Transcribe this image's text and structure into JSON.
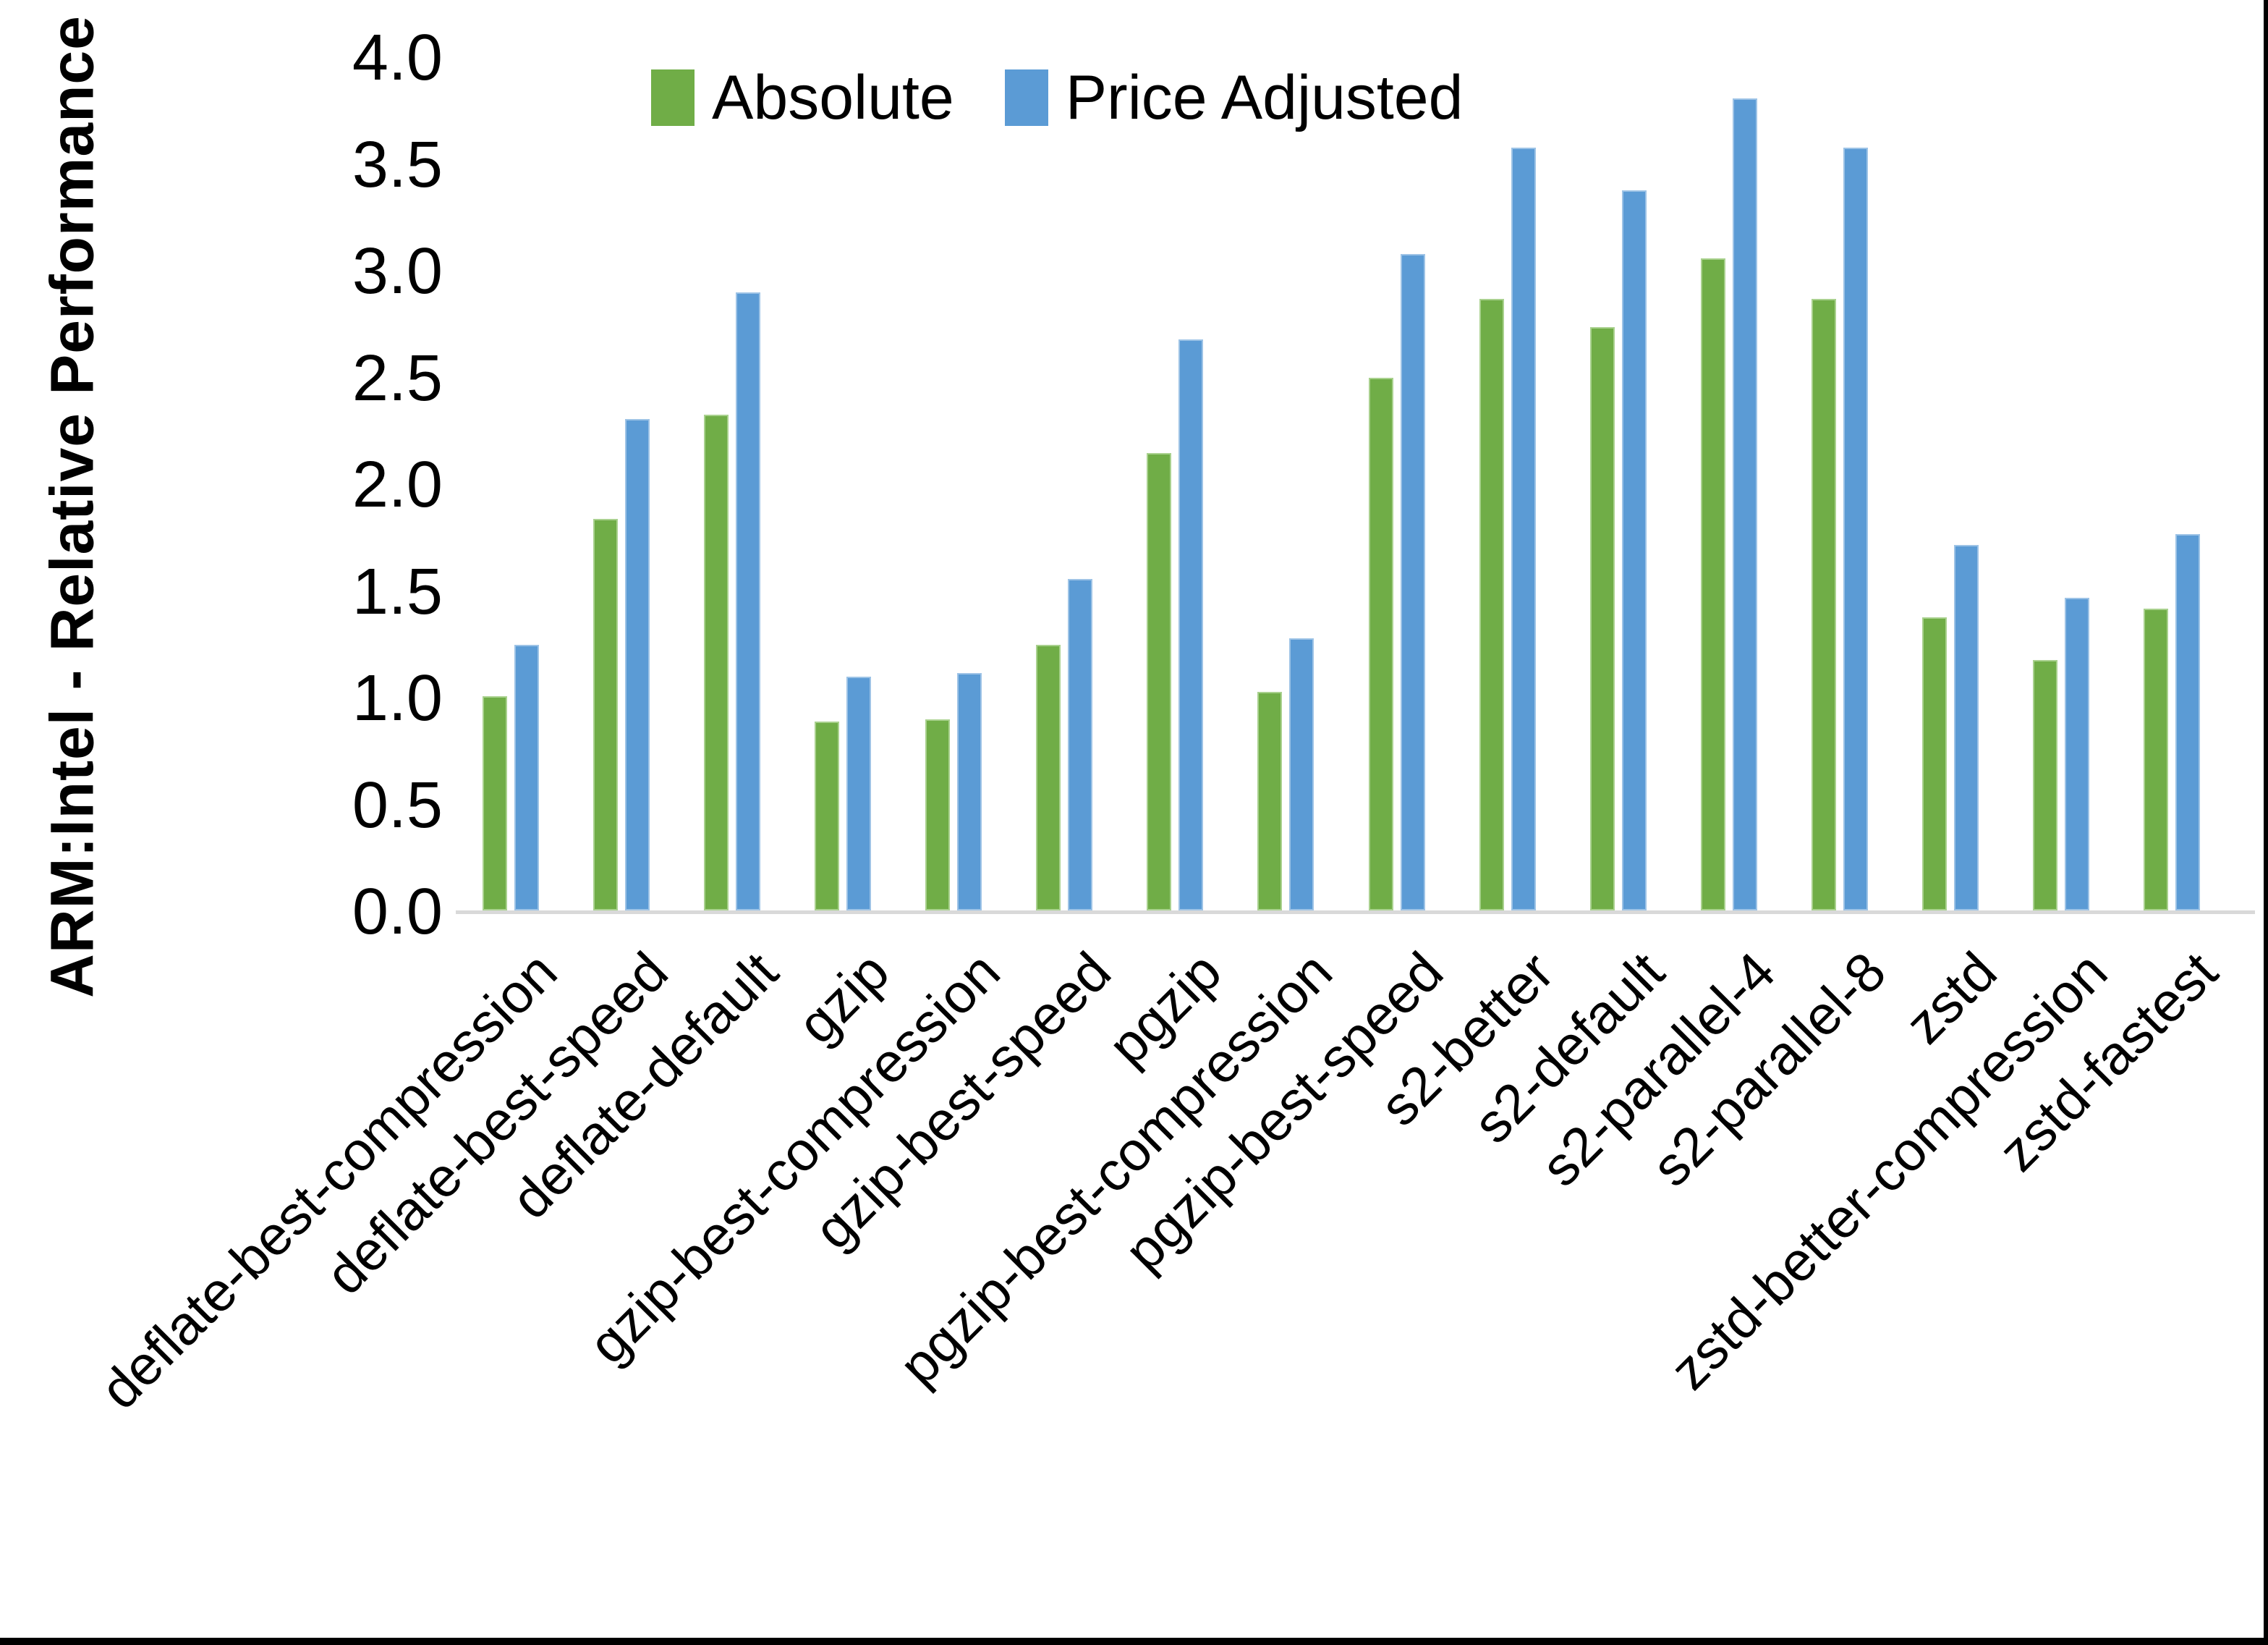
{
  "frame": {
    "background_color": "#ffffff",
    "border_right_color": "#000000",
    "border_bottom_color": "#000000"
  },
  "legend": {
    "position": "top-center",
    "items": [
      {
        "label": "Absolute",
        "color": "#70ad47"
      },
      {
        "label": "Price Adjusted",
        "color": "#5b9bd5"
      }
    ]
  },
  "chart_data": {
    "type": "bar",
    "title": "",
    "xlabel": "",
    "ylabel": "ARM:Intel - Relative Performance",
    "ylim": [
      0.0,
      4.0
    ],
    "ytick_step": 0.5,
    "yticks": [
      "0.0",
      "0.5",
      "1.0",
      "1.5",
      "2.0",
      "2.5",
      "3.0",
      "3.5",
      "4.0"
    ],
    "grid": false,
    "axis_color": "#d9d9d9",
    "text_color": "#000000",
    "legend_position": "top-center",
    "categories": [
      "deflate-best-compression",
      "deflate-best-speed",
      "deflate-default",
      "gzip",
      "gzip-best-compression",
      "gzip-best-speed",
      "pgzip",
      "pgzip-best-compression",
      "pgzip-best-speed",
      "s2-better",
      "s2-default",
      "s2-parallel-4",
      "s2-parallel-8",
      "zstd",
      "zstd-better-compression",
      "zstd-fastest"
    ],
    "series": [
      {
        "name": "Absolute",
        "color": "#70ad47",
        "edge_color": "#a9d18e",
        "values": [
          1.01,
          1.84,
          2.33,
          0.89,
          0.9,
          1.25,
          2.15,
          1.03,
          2.5,
          2.87,
          2.74,
          3.06,
          2.87,
          1.38,
          1.18,
          1.42
        ]
      },
      {
        "name": "Price Adjusted",
        "color": "#5b9bd5",
        "edge_color": "#9dc3e6",
        "values": [
          1.25,
          2.31,
          2.9,
          1.1,
          1.12,
          1.56,
          2.68,
          1.28,
          3.08,
          3.58,
          3.38,
          3.81,
          3.58,
          1.72,
          1.47,
          1.77
        ]
      }
    ]
  }
}
